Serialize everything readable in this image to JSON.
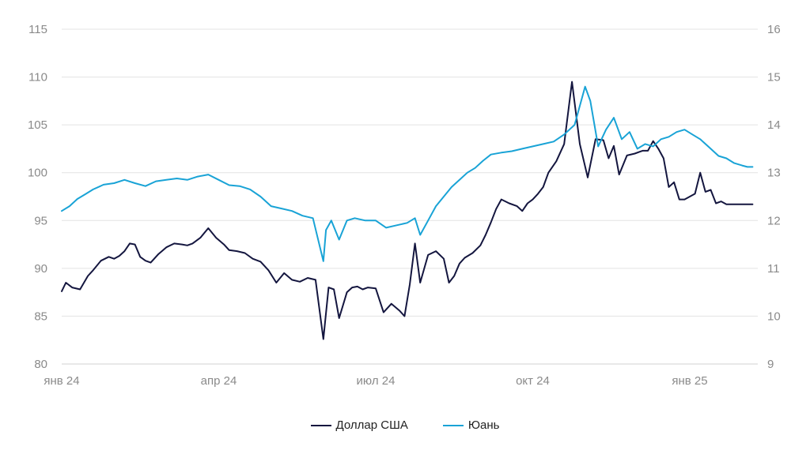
{
  "chart_data": {
    "type": "line",
    "title": "",
    "xlabel": "",
    "ylabel": "",
    "x_tick_labels": [
      "янв 24",
      "апр 24",
      "июл 24",
      "окт 24",
      "янв 25"
    ],
    "y_left_ticks": [
      "80",
      "85",
      "90",
      "95",
      "100",
      "105",
      "110",
      "115"
    ],
    "y_right_ticks": [
      "9",
      "10",
      "11",
      "12",
      "13",
      "14",
      "15",
      "16"
    ],
    "ylim_left": [
      80,
      115
    ],
    "ylim_right": [
      9,
      16
    ],
    "x_range_months": [
      0,
      13.3
    ],
    "grid": true,
    "legend_position": "bottom",
    "series": [
      {
        "name": "Доллар США",
        "axis": "left",
        "color": "#14163f",
        "x": [
          0.0,
          0.08,
          0.2,
          0.35,
          0.5,
          0.6,
          0.75,
          0.9,
          1.0,
          1.1,
          1.2,
          1.3,
          1.4,
          1.5,
          1.6,
          1.7,
          1.85,
          2.0,
          2.15,
          2.3,
          2.4,
          2.5,
          2.65,
          2.8,
          2.95,
          3.1,
          3.2,
          3.35,
          3.5,
          3.65,
          3.8,
          3.95,
          4.1,
          4.25,
          4.4,
          4.55,
          4.7,
          4.85,
          5.0,
          5.1,
          5.2,
          5.3,
          5.45,
          5.55,
          5.65,
          5.75,
          5.85,
          6.0,
          6.15,
          6.3,
          6.45,
          6.55,
          6.65,
          6.75,
          6.85,
          7.0,
          7.15,
          7.3,
          7.4,
          7.5,
          7.6,
          7.7,
          7.85,
          8.0,
          8.1,
          8.2,
          8.3,
          8.4,
          8.55,
          8.7,
          8.8,
          8.9,
          9.0,
          9.1,
          9.2,
          9.3,
          9.45,
          9.6,
          9.75,
          9.9,
          10.05,
          10.2,
          10.35,
          10.45,
          10.55,
          10.65,
          10.8,
          10.95,
          11.05,
          11.1,
          11.2,
          11.3,
          11.4,
          11.5,
          11.6,
          11.7,
          11.8,
          11.9,
          12.0,
          12.1,
          12.2,
          12.3,
          12.4,
          12.5,
          12.6,
          12.7,
          12.8,
          12.9,
          13.0,
          13.1,
          13.2
        ],
        "values": [
          87.6,
          88.5,
          88.0,
          87.8,
          89.2,
          89.8,
          90.8,
          91.2,
          91.0,
          91.3,
          91.8,
          92.6,
          92.5,
          91.2,
          90.8,
          90.6,
          91.5,
          92.2,
          92.6,
          92.5,
          92.4,
          92.6,
          93.2,
          94.2,
          93.2,
          92.5,
          91.9,
          91.8,
          91.6,
          91.0,
          90.7,
          89.8,
          88.5,
          89.5,
          88.8,
          88.6,
          89.0,
          88.8,
          82.6,
          88.0,
          87.8,
          84.8,
          87.5,
          88.0,
          88.1,
          87.8,
          88.0,
          87.9,
          85.4,
          86.3,
          85.6,
          85.0,
          88.3,
          92.6,
          88.5,
          91.4,
          91.8,
          91.0,
          88.5,
          89.2,
          90.5,
          91.1,
          91.6,
          92.4,
          93.5,
          94.8,
          96.2,
          97.2,
          96.8,
          96.5,
          96.0,
          96.8,
          97.2,
          97.8,
          98.5,
          100.0,
          101.2,
          103.0,
          109.5,
          103.0,
          99.5,
          103.5,
          103.4,
          101.5,
          102.8,
          99.8,
          101.8,
          102.0,
          102.2,
          102.3,
          102.3,
          103.3,
          102.5,
          101.5,
          98.5,
          99.0,
          97.2,
          97.2,
          97.5,
          97.8,
          100.0,
          98.0,
          98.2,
          96.8,
          97.0,
          96.7,
          96.7,
          96.7,
          96.7,
          96.7,
          96.7
        ],
        "visible_x_max": 13.2
      },
      {
        "name": "Юань",
        "axis": "right",
        "color": "#19a3d6",
        "x": [
          0.0,
          0.15,
          0.3,
          0.45,
          0.6,
          0.8,
          1.0,
          1.2,
          1.4,
          1.6,
          1.8,
          2.0,
          2.2,
          2.4,
          2.6,
          2.8,
          3.0,
          3.2,
          3.4,
          3.6,
          3.8,
          4.0,
          4.2,
          4.4,
          4.6,
          4.8,
          5.0,
          5.05,
          5.15,
          5.3,
          5.45,
          5.6,
          5.8,
          6.0,
          6.2,
          6.4,
          6.6,
          6.75,
          6.85,
          7.0,
          7.15,
          7.3,
          7.45,
          7.6,
          7.75,
          7.9,
          8.05,
          8.2,
          8.4,
          8.6,
          8.8,
          9.0,
          9.2,
          9.4,
          9.6,
          9.8,
          10.0,
          10.1,
          10.25,
          10.4,
          10.55,
          10.7,
          10.85,
          11.0,
          11.15,
          11.3,
          11.45,
          11.6,
          11.75,
          11.9,
          12.05,
          12.2,
          12.4,
          12.55,
          12.7,
          12.85,
          13.0,
          13.1,
          13.2
        ],
        "values": [
          12.2,
          12.3,
          12.45,
          12.55,
          12.65,
          12.75,
          12.78,
          12.85,
          12.78,
          12.72,
          12.82,
          12.85,
          12.88,
          12.85,
          12.92,
          12.96,
          12.85,
          12.74,
          12.72,
          12.65,
          12.5,
          12.3,
          12.25,
          12.2,
          12.1,
          12.05,
          11.15,
          11.8,
          12.0,
          11.6,
          12.0,
          12.05,
          12.0,
          12.0,
          11.85,
          11.9,
          11.95,
          12.05,
          11.7,
          12.0,
          12.3,
          12.5,
          12.7,
          12.85,
          13.0,
          13.1,
          13.25,
          13.38,
          13.42,
          13.45,
          13.5,
          13.55,
          13.6,
          13.65,
          13.8,
          14.0,
          14.8,
          14.5,
          13.55,
          13.9,
          14.15,
          13.7,
          13.85,
          13.5,
          13.6,
          13.55,
          13.7,
          13.75,
          13.85,
          13.9,
          13.8,
          13.7,
          13.5,
          13.35,
          13.3,
          13.2,
          13.15,
          13.12,
          13.12
        ],
        "visible_x_max": 13.2
      }
    ]
  }
}
